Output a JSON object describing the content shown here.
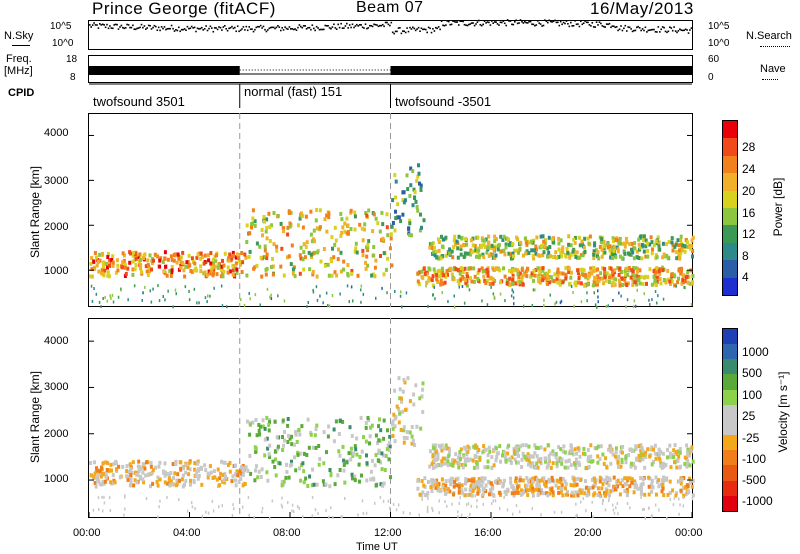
{
  "header": {
    "station": "Prince George (fitACF)",
    "beam": "Beam 07",
    "date": "16/May/2013"
  },
  "top_panels": {
    "nsky_label": "N.Sky",
    "nsky_ticks": [
      "10^5",
      "10^0"
    ],
    "nsearch_label": "N.Search",
    "nsearch_ticks": [
      "10^5",
      "10^0"
    ],
    "freq_label": "Freq.",
    "freq_unit": "[MHz]",
    "freq_ticks": [
      "18",
      "8"
    ],
    "nave_label": "Nave",
    "nave_ticks": [
      "60",
      "0"
    ],
    "cpid_label": "CPID",
    "cpid_modes": [
      {
        "name": "twofsound 3501",
        "start_h": 0,
        "end_h": 6
      },
      {
        "name": "normal (fast) 151",
        "start_h": 6,
        "end_h": 12
      },
      {
        "name": "twofsound -3501",
        "start_h": 12,
        "end_h": 24
      }
    ]
  },
  "power_panel": {
    "ylabel": "Slant Range [km]",
    "yticks": [
      "4000",
      "3000",
      "2000",
      "1000"
    ],
    "colorbar_label": "Power [dB]",
    "colorbar_ticks": [
      "28",
      "24",
      "20",
      "16",
      "12",
      "8",
      "4"
    ],
    "colorbar_colors": [
      "#e8000b",
      "#f04a1b",
      "#f2801c",
      "#f0b02a",
      "#d8d21e",
      "#8cc63f",
      "#3a9a55",
      "#2e8a8a",
      "#2a5fa8",
      "#1d2fd0"
    ]
  },
  "velocity_panel": {
    "ylabel": "Slant Range [km]",
    "yticks": [
      "4000",
      "3000",
      "2000",
      "1000"
    ],
    "colorbar_label": "Velocity  [m s⁻¹]",
    "colorbar_ticks": [
      "1000",
      "500",
      "100",
      "25",
      "-25",
      "-100",
      "-500",
      "-1000"
    ],
    "colorbar_colors": [
      "#1f3fb5",
      "#2f66b0",
      "#3a8a70",
      "#5aaa3a",
      "#8cd24a",
      "#c8c8c8",
      "#c8c8c8",
      "#f2a81a",
      "#f07f1a",
      "#e85a14",
      "#e82a10",
      "#e00010"
    ]
  },
  "xaxis": {
    "ticks": [
      "00:00",
      "04:00",
      "08:00",
      "12:00",
      "16:00",
      "20:00",
      "00:00"
    ],
    "label": "Time UT"
  },
  "chart_data": {
    "type": "heatmap",
    "title": "Prince George (fitACF)  Beam 07  16/May/2013",
    "xlabel": "Time UT",
    "ylabel": "Slant Range [km]",
    "x_range_hours": [
      0,
      24
    ],
    "y_range_km": [
      180,
      4500
    ],
    "power_range_db": [
      0,
      30
    ],
    "velocity_range_ms": [
      -1000,
      1000
    ],
    "echo_regions": [
      {
        "name": "",
        "t_start": 0.0,
        "t_end": 6.2,
        "range_min": 900,
        "range_max": 1450,
        "power_db": 22,
        "velocity_ms": -150
      },
      {
        "name": "",
        "t_start": 6.2,
        "t_end": 12.0,
        "range_min": 900,
        "range_max": 2400,
        "power_db": 18,
        "velocity_ms": 300
      },
      {
        "name": "",
        "t_start": 12.0,
        "t_end": 13.3,
        "range_min": 1800,
        "range_max": 3400,
        "power_db": 10,
        "velocity_ms": 0
      },
      {
        "name": "",
        "t_start": 13.0,
        "t_end": 24.0,
        "range_min": 700,
        "range_max": 1100,
        "power_db": 20,
        "velocity_ms": -200
      },
      {
        "name": "",
        "t_start": 13.5,
        "t_end": 24.0,
        "range_min": 1300,
        "range_max": 1800,
        "power_db": 15,
        "velocity_ms": 0
      }
    ]
  }
}
